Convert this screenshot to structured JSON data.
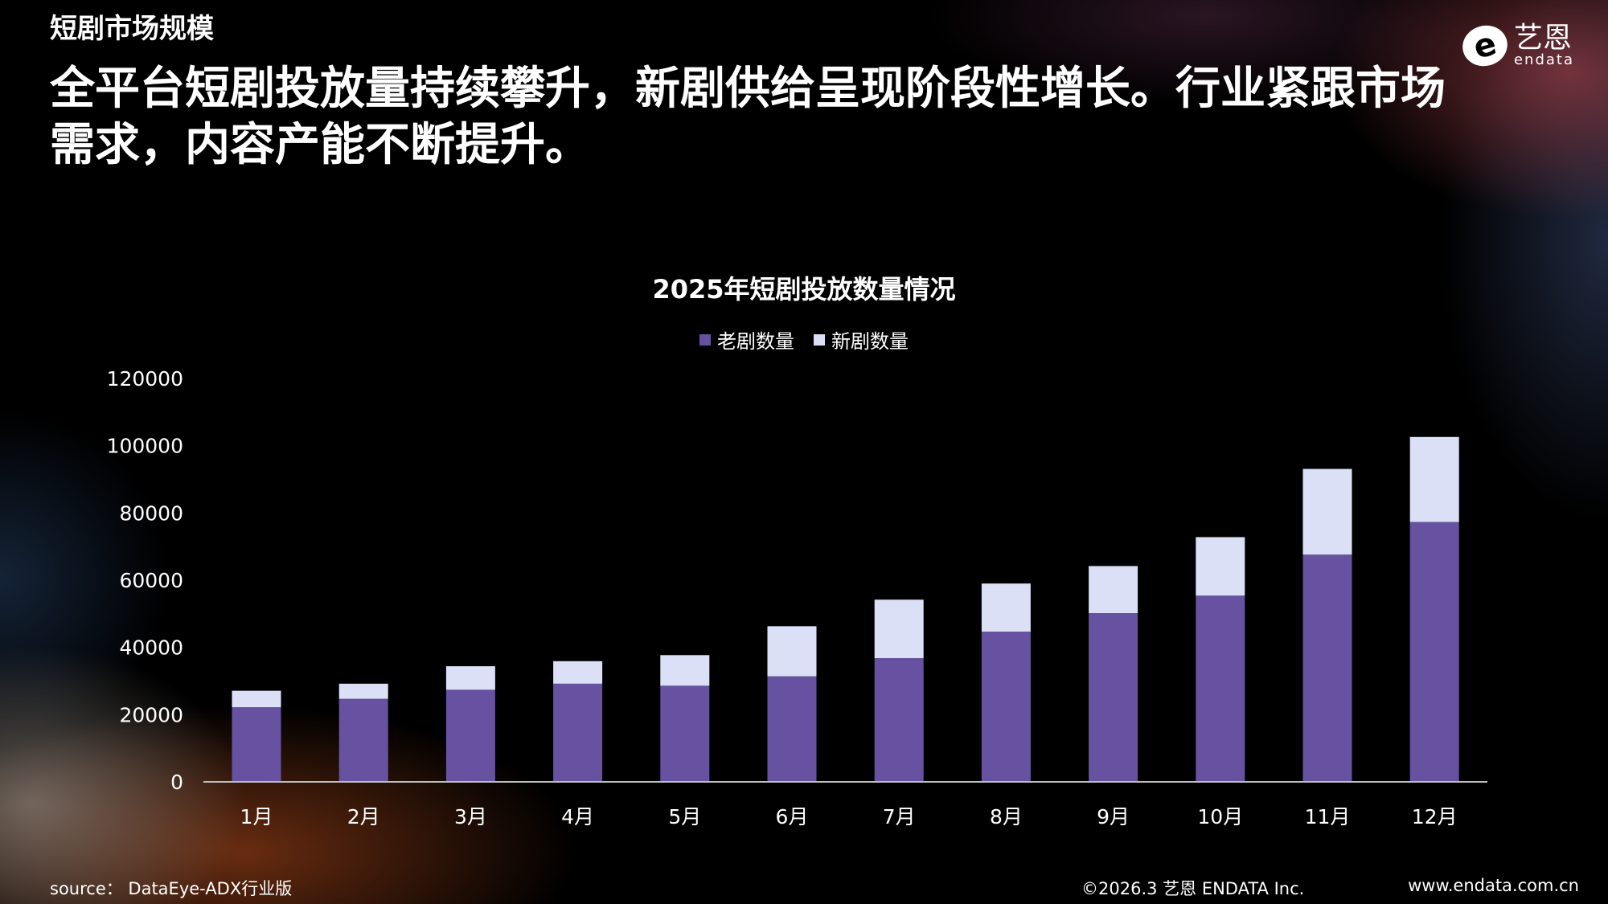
{
  "header": {
    "section_title": "短剧市场规模",
    "headline": "全平台短剧投放量持续攀升，新剧供给呈现阶段性增长。行业紧跟市场需求，内容产能不断提升。"
  },
  "logo": {
    "cn": "艺恩",
    "en": "endata",
    "mark": "e"
  },
  "chart_data": {
    "type": "bar",
    "stacked": true,
    "title": "2025年短剧投放数量情况",
    "categories": [
      "1月",
      "2月",
      "3月",
      "4月",
      "5月",
      "6月",
      "7月",
      "8月",
      "9月",
      "10月",
      "11月",
      "12月"
    ],
    "series": [
      {
        "name": "老剧数量",
        "color": "#6652a0",
        "values": [
          22200,
          24700,
          27400,
          29200,
          28600,
          31400,
          36800,
          44700,
          50200,
          55400,
          67600,
          77300
        ]
      },
      {
        "name": "新剧数量",
        "color": "#dbe0f7",
        "values": [
          4900,
          4500,
          7000,
          6700,
          9100,
          14900,
          17400,
          14300,
          14000,
          17400,
          25500,
          25300
        ]
      }
    ],
    "ylim": [
      0,
      120000
    ],
    "yticks": [
      "0",
      "20000",
      "40000",
      "60000",
      "80000",
      "100000",
      "120000"
    ],
    "grid": false,
    "legend": "top"
  },
  "footer": {
    "source": "source： DataEye-ADX行业版",
    "copyright": "©2026.3  艺恩 ENDATA Inc.",
    "website": "www.endata.com.cn"
  }
}
